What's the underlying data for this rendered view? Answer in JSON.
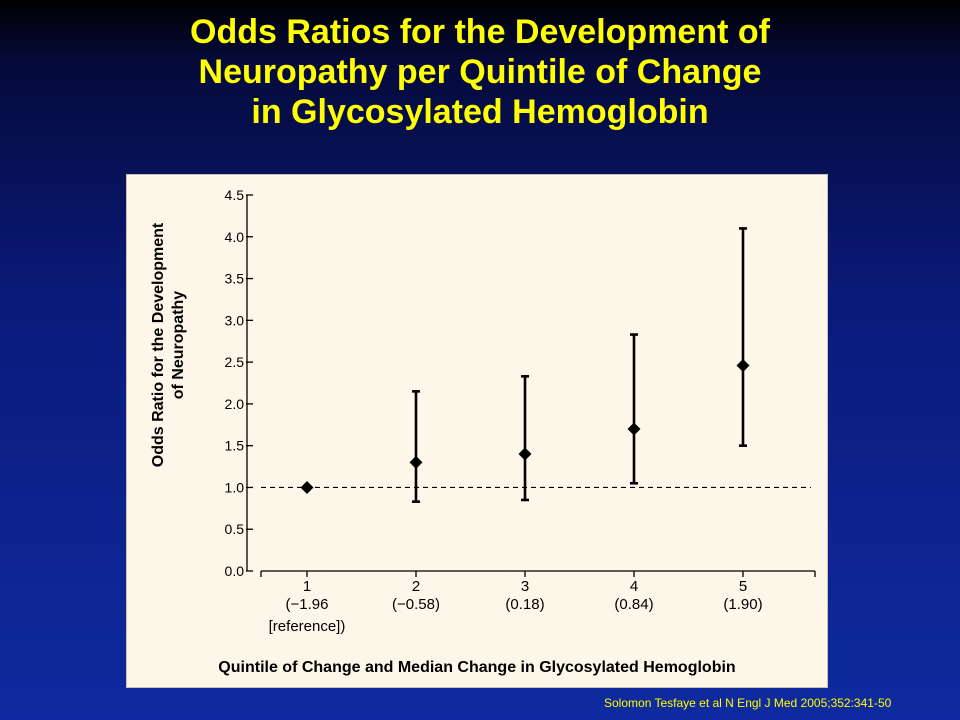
{
  "slide": {
    "title_lines": [
      "Odds Ratios for the Development of",
      "Neuropathy per Quintile of Change",
      "in Glycosylated Hemoglobin"
    ],
    "citation": "Solomon Tesfaye et al N Engl J Med 2005;352:341-50",
    "colors": {
      "title": "#ffff00",
      "background_top": "#000000",
      "background_bottom": "#0f2aa0",
      "panel": "#fdf7ea",
      "marks": "#000000"
    }
  },
  "chart_data": {
    "type": "scatter",
    "error_bars": true,
    "ylabel_lines": [
      "Odds Ratio for the Development",
      "of Neuropathy"
    ],
    "xlabel": "Quintile of Change and Median Change in Glycosylated Hemoglobin",
    "ylim": [
      0,
      4.5
    ],
    "yticks": [
      "0.0",
      "0.5",
      "1.0",
      "1.5",
      "2.0",
      "2.5",
      "3.0",
      "3.5",
      "4.0",
      "4.5"
    ],
    "reference_line": 1.0,
    "grid": false,
    "categories": [
      {
        "label": "1",
        "sub": [
          "(−1.96",
          "[reference])"
        ]
      },
      {
        "label": "2",
        "sub": [
          "(−0.58)"
        ]
      },
      {
        "label": "3",
        "sub": [
          "(0.18)"
        ]
      },
      {
        "label": "4",
        "sub": [
          "(0.84)"
        ]
      },
      {
        "label": "5",
        "sub": [
          "(1.90)"
        ]
      }
    ],
    "points": [
      {
        "or": 1.0,
        "low": null,
        "high": null
      },
      {
        "or": 1.3,
        "low": 0.83,
        "high": 2.15
      },
      {
        "or": 1.4,
        "low": 0.85,
        "high": 2.33
      },
      {
        "or": 1.7,
        "low": 1.05,
        "high": 2.83
      },
      {
        "or": 2.46,
        "low": 1.5,
        "high": 4.1
      }
    ]
  }
}
